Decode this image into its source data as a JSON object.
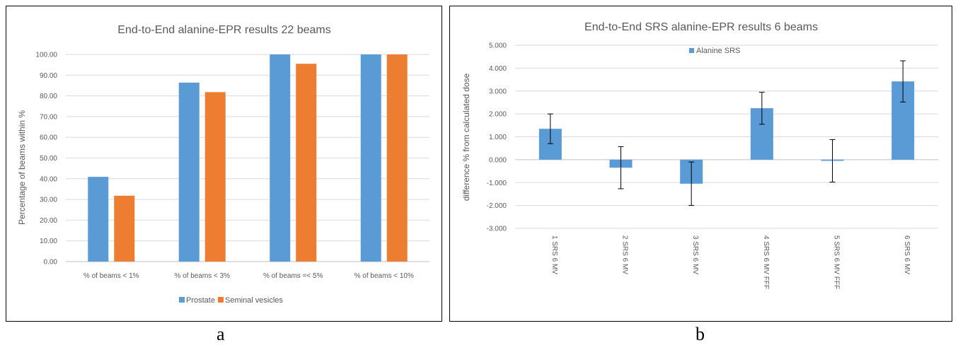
{
  "captions": {
    "a": "a",
    "b": "b"
  },
  "chart_data": [
    {
      "type": "bar",
      "title": "End-to-End alanine-EPR results 22 beams",
      "xlabel": "",
      "ylabel": "Percentage of beams within %",
      "categories": [
        "% of beams < 1%",
        "% of beams < 3%",
        "% of beams =< 5%",
        "% of beams < 10%"
      ],
      "series": [
        {
          "name": "Prostate",
          "color": "#5B9BD5",
          "values": [
            40.9,
            86.4,
            100.0,
            100.0
          ]
        },
        {
          "name": "Seminal vesicles",
          "color": "#ED7D31",
          "values": [
            31.8,
            81.8,
            95.5,
            100.0
          ]
        }
      ],
      "ylim": [
        0,
        100
      ],
      "yticks": [
        "0.00",
        "10.00",
        "20.00",
        "30.00",
        "40.00",
        "50.00",
        "60.00",
        "70.00",
        "80.00",
        "90.00",
        "100.00"
      ],
      "grid": true,
      "legend": "bottom"
    },
    {
      "type": "bar",
      "title": "End-to-End SRS alanine-EPR results 6 beams",
      "xlabel": "",
      "ylabel": "difference % from calculated dose",
      "categories": [
        "1 SRS 6 MV",
        "2 SRS 6 MV",
        "3 SRS 6 MV",
        "4 SRS 6 MV FFF",
        "5 SRS 6 MV FFF",
        "6 SRS 6 MV"
      ],
      "series": [
        {
          "name": "Alanine SRS",
          "color": "#5B9BD5",
          "values": [
            1.35,
            -0.35,
            -1.05,
            2.25,
            -0.05,
            3.42
          ],
          "error": [
            0.65,
            0.92,
            0.95,
            0.7,
            0.93,
            0.9
          ]
        }
      ],
      "ylim": [
        -3,
        5
      ],
      "yticks": [
        "-3.000",
        "-2.000",
        "-1.000",
        "0.000",
        "1.000",
        "2.000",
        "3.000",
        "4.000",
        "5.000"
      ],
      "grid": true,
      "legend": "top-left"
    }
  ]
}
